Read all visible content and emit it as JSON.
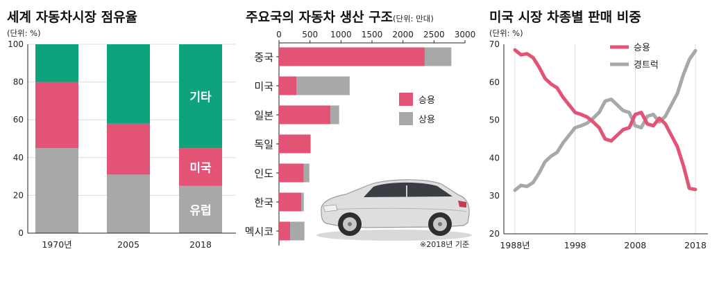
{
  "colors": {
    "gray": "#a7a8a8",
    "pink": "#e25376",
    "green": "#0ea37d",
    "grid": "#dcdcdc",
    "axis": "#222222"
  },
  "chart_data": [
    {
      "type": "bar",
      "title": "세계 자동차시장 점유율",
      "unit": "(단위: %)",
      "categories": [
        "1970년",
        "2005",
        "2018"
      ],
      "ylim": [
        0,
        100
      ],
      "y_ticks": [
        "0",
        "20",
        "40",
        "60",
        "80",
        "100"
      ],
      "series": [
        {
          "name": "유럽",
          "values": [
            45,
            31,
            25
          ]
        },
        {
          "name": "미국",
          "values": [
            35,
            27,
            20
          ]
        },
        {
          "name": "기타",
          "values": [
            20,
            42,
            55
          ]
        }
      ],
      "grid": true
    },
    {
      "type": "bar",
      "orientation": "horizontal",
      "title": "주요국의 자동차 생산 구조",
      "unit": "(단위: 만대)",
      "categories": [
        "중국",
        "미국",
        "일본",
        "독일",
        "인도",
        "한국",
        "멕시코"
      ],
      "xlim": [
        0,
        3000
      ],
      "x_ticks": [
        "0",
        "500",
        "1000",
        "1500",
        "2000",
        "2500",
        "3000"
      ],
      "series": [
        {
          "name": "승용",
          "values": [
            2350,
            280,
            830,
            510,
            400,
            360,
            180
          ]
        },
        {
          "name": "상용",
          "values": [
            430,
            860,
            140,
            0,
            90,
            40,
            230
          ]
        }
      ],
      "legend": "right",
      "note": "※2018년 기준"
    },
    {
      "type": "line",
      "title": "미국 시장 차종별 판매 비중",
      "unit": "(단위: %)",
      "ylim": [
        20,
        70
      ],
      "xlim": [
        1988,
        2018
      ],
      "y_ticks": [
        "20",
        "30",
        "40",
        "50",
        "60",
        "70"
      ],
      "x_ticks": [
        "1988년",
        "1998",
        "2008",
        "2018"
      ],
      "x": [
        1988,
        1989,
        1990,
        1991,
        1992,
        1993,
        1994,
        1995,
        1996,
        1997,
        1998,
        1999,
        2000,
        2001,
        2002,
        2003,
        2004,
        2005,
        2006,
        2007,
        2008,
        2009,
        2010,
        2011,
        2012,
        2013,
        2014,
        2015,
        2016,
        2017,
        2018
      ],
      "series": [
        {
          "name": "승용",
          "values": [
            68.5,
            67.2,
            67.5,
            66.5,
            64.0,
            61.0,
            59.5,
            58.5,
            56.0,
            54.0,
            52.0,
            51.5,
            50.8,
            49.5,
            48.0,
            45.0,
            44.5,
            46.0,
            47.5,
            48.0,
            51.5,
            52.0,
            49.0,
            48.5,
            50.5,
            49.0,
            46.0,
            43.0,
            38.0,
            32.0,
            31.7
          ]
        },
        {
          "name": "경트럭",
          "values": [
            31.5,
            32.8,
            32.5,
            33.5,
            36.0,
            39.0,
            40.5,
            41.5,
            44.0,
            46.0,
            48.0,
            48.5,
            49.2,
            50.5,
            52.0,
            55.0,
            55.5,
            54.0,
            52.5,
            52.0,
            48.5,
            48.0,
            51.0,
            51.5,
            49.5,
            51.0,
            54.0,
            57.0,
            62.0,
            66.0,
            68.3
          ]
        }
      ],
      "legend": "top",
      "grid": true
    }
  ]
}
